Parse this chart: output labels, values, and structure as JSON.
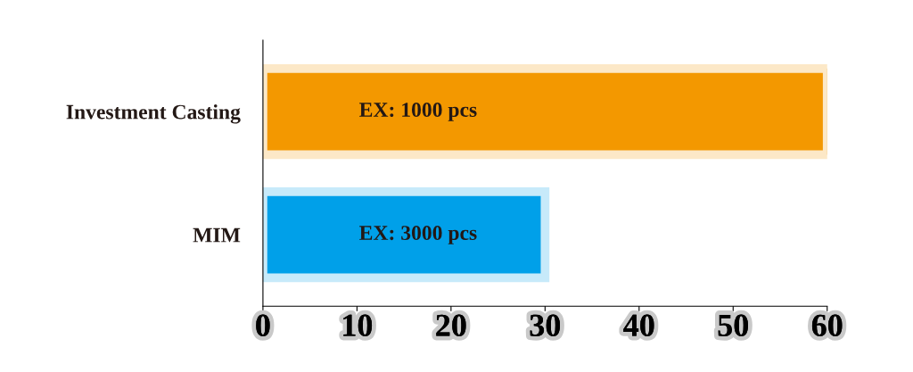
{
  "chart_data": {
    "type": "bar",
    "orientation": "horizontal",
    "categories": [
      "Investment Casting",
      "MIM"
    ],
    "values": [
      60,
      30
    ],
    "colors": [
      "#f39800",
      "#00a0e9"
    ],
    "annotations": [
      "EX: 1000 pcs",
      "EX: 3000 pcs"
    ],
    "xlim": [
      0,
      60
    ],
    "xticks": [
      0,
      10,
      20,
      30,
      40,
      50,
      60
    ],
    "grid": false,
    "legend": false
  }
}
